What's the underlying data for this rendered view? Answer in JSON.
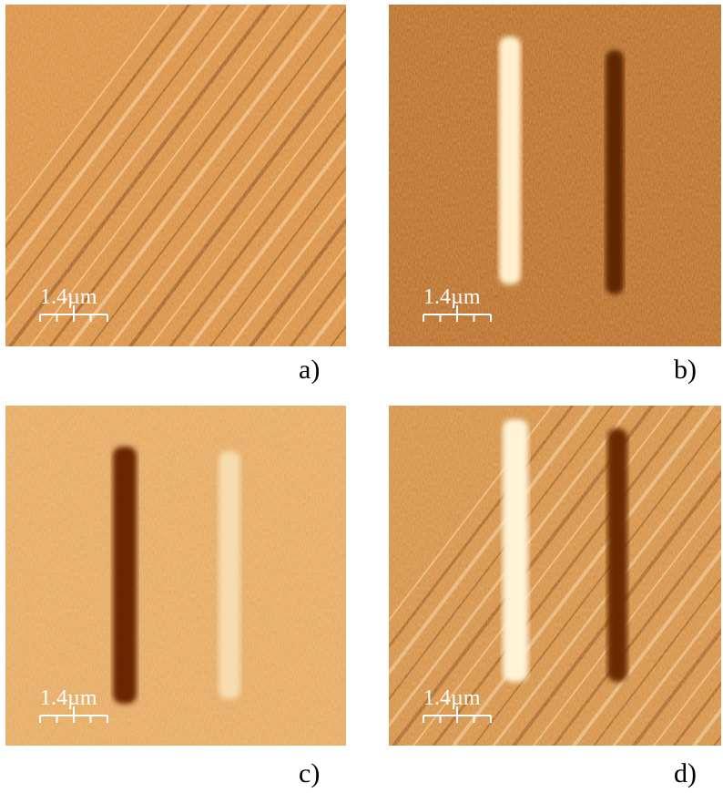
{
  "panels": [
    {
      "label": "a)",
      "scale_bar": "1.4µm"
    },
    {
      "label": "b)",
      "scale_bar": "1.4µm"
    },
    {
      "label": "c)",
      "scale_bar": "1.4µm"
    },
    {
      "label": "d)",
      "scale_bar": "1.4µm"
    }
  ]
}
